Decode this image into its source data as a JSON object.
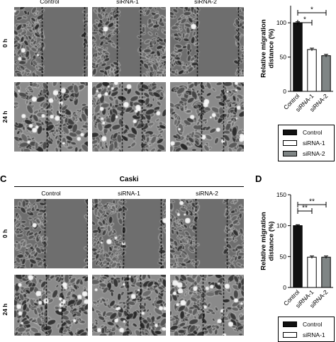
{
  "columns": [
    "Control",
    "siRNA-1",
    "siRNA-2"
  ],
  "rows": [
    "0 h",
    "24 h"
  ],
  "colors": {
    "control": "#111111",
    "sirna1": "#ffffff",
    "sirna2": "#7f8585"
  },
  "panel_top": {
    "chart_data": {
      "type": "bar",
      "categories": [
        "Control",
        "siRNA-1",
        "siRNA-2"
      ],
      "values": [
        100,
        61,
        52
      ],
      "errors": [
        1.5,
        2,
        2
      ],
      "ylabel": "Relative migration\ndistance (%)",
      "ylim": [
        0,
        125
      ],
      "yticks": [
        0,
        50,
        100
      ],
      "significance": [
        {
          "from": "Control",
          "to": "siRNA-1",
          "label": "*"
        },
        {
          "from": "Control",
          "to": "siRNA-2",
          "label": "*"
        }
      ],
      "legend": [
        "Control",
        "siRNA-1",
        "siRNA-2"
      ],
      "legend_position": "bottom"
    }
  },
  "panel_bottom": {
    "letter_left": "C",
    "letter_right": "D",
    "cell_title": "Caski",
    "chart_data": {
      "type": "bar",
      "categories": [
        "Control",
        "siRNA-1",
        "siRNA-2"
      ],
      "values": [
        100,
        49,
        49
      ],
      "errors": [
        1.5,
        2,
        2
      ],
      "ylabel": "Relative migration\ndistance (%)",
      "ylim": [
        0,
        150
      ],
      "yticks": [
        0,
        50,
        100,
        150
      ],
      "significance": [
        {
          "from": "Control",
          "to": "siRNA-1",
          "label": "**"
        },
        {
          "from": "Control",
          "to": "siRNA-2",
          "label": "**"
        }
      ],
      "legend": [
        "Control",
        "siRNA-1"
      ],
      "legend_position": "bottom"
    }
  }
}
